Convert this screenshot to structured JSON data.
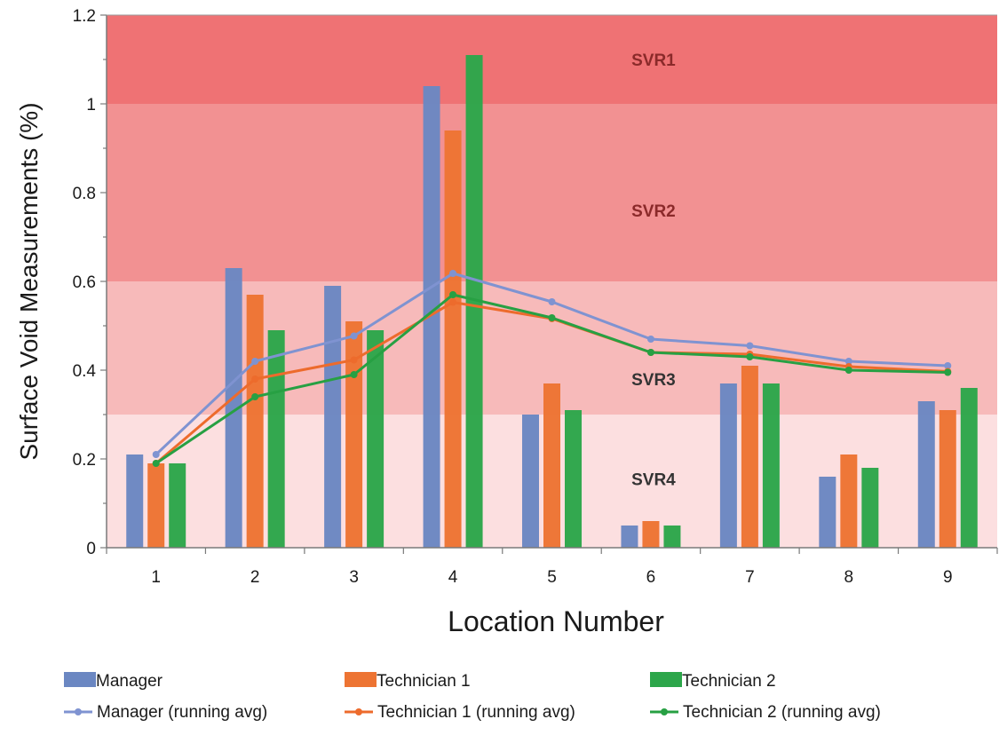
{
  "chart_data": {
    "type": "bar",
    "title": "",
    "xlabel": "Location Number",
    "ylabel": "Surface Void Measurements (%)",
    "categories": [
      "1",
      "2",
      "3",
      "4",
      "5",
      "6",
      "7",
      "8",
      "9"
    ],
    "ylim": [
      0,
      1.2
    ],
    "yticks": [
      "0",
      "0.2",
      "0.4",
      "0.6",
      "0.8",
      "1",
      "1.2"
    ],
    "grid": false,
    "legend_position": "bottom",
    "series": [
      {
        "name": "Manager",
        "kind": "bar",
        "color": "#6b87c2",
        "values": [
          0.21,
          0.63,
          0.59,
          1.04,
          0.3,
          0.05,
          0.37,
          0.16,
          0.33
        ]
      },
      {
        "name": "Technician 1",
        "kind": "bar",
        "color": "#ed7433",
        "values": [
          0.19,
          0.57,
          0.51,
          0.94,
          0.37,
          0.06,
          0.41,
          0.21,
          0.31
        ]
      },
      {
        "name": "Technician 2",
        "kind": "bar",
        "color": "#2ca64a",
        "values": [
          0.19,
          0.49,
          0.49,
          1.11,
          0.31,
          0.05,
          0.37,
          0.18,
          0.36
        ]
      },
      {
        "name": "Manager  (running avg)",
        "kind": "line",
        "color": "#7f93d1",
        "values": [
          0.21,
          0.42,
          0.477,
          0.618,
          0.554,
          0.47,
          0.455,
          0.42,
          0.41
        ]
      },
      {
        "name": "Technician 1 (running avg)",
        "kind": "line",
        "color": "#ed6b2c",
        "values": [
          0.19,
          0.38,
          0.423,
          0.553,
          0.516,
          0.44,
          0.436,
          0.408,
          0.397
        ]
      },
      {
        "name": "Technician 2 (running avg)",
        "kind": "line",
        "color": "#27a043",
        "values": [
          0.19,
          0.34,
          0.39,
          0.57,
          0.518,
          0.44,
          0.43,
          0.4,
          0.395
        ]
      }
    ],
    "bands": [
      {
        "label": "SVR1",
        "from": 1.0,
        "to": 1.2,
        "color": "#ef7274",
        "label_color": "#8b2a2a",
        "label_y": 1.1
      },
      {
        "label": "SVR2",
        "from": 0.6,
        "to": 1.0,
        "color": "#f29192",
        "label_color": "#8b2a2a",
        "label_y": 0.76
      },
      {
        "label": "SVR3",
        "from": 0.3,
        "to": 0.6,
        "color": "#f7baba",
        "label_color": "#333333",
        "label_y": 0.38
      },
      {
        "label": "SVR4",
        "from": 0.0,
        "to": 0.3,
        "color": "#fcdfe0",
        "label_color": "#333333",
        "label_y": 0.155
      }
    ]
  }
}
